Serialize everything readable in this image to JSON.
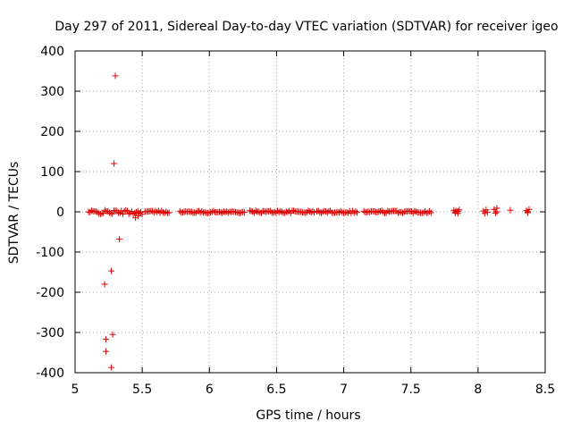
{
  "chart_data": {
    "type": "scatter",
    "title": "Day 297 of 2011, Sidereal Day-to-day VTEC variation (SDTVAR) for receiver igeo",
    "xlabel": "GPS time / hours",
    "ylabel": "SDTVAR / TECUs",
    "xlim": [
      5,
      8.5
    ],
    "ylim": [
      -400,
      400
    ],
    "xticks": [
      "5",
      "5.5",
      "6",
      "6.5",
      "7",
      "7.5",
      "8",
      "8.5"
    ],
    "yticks": [
      "400",
      "300",
      "200",
      "100",
      "0",
      "-100",
      "-200",
      "-300",
      "-400"
    ],
    "grid": true,
    "legend": "none",
    "marker": "+",
    "color": "#dd0000",
    "outliers": [
      {
        "x": 5.3,
        "y": 338
      },
      {
        "x": 5.29,
        "y": 120
      },
      {
        "x": 5.33,
        "y": -68
      },
      {
        "x": 5.27,
        "y": -147
      },
      {
        "x": 5.22,
        "y": -180
      },
      {
        "x": 5.28,
        "y": -305
      },
      {
        "x": 5.23,
        "y": -317
      },
      {
        "x": 5.23,
        "y": -347
      },
      {
        "x": 5.27,
        "y": -387
      },
      {
        "x": 5.45,
        "y": -15
      },
      {
        "x": 5.47,
        "y": -10
      }
    ],
    "near_zero_segments": [
      {
        "x_start": 5.1,
        "x_end": 5.5,
        "y_min": -6,
        "y_max": 4
      },
      {
        "x_start": 5.52,
        "x_end": 5.7,
        "y_min": -3,
        "y_max": 3
      },
      {
        "x_start": 5.78,
        "x_end": 6.26,
        "y_min": -3,
        "y_max": 2
      },
      {
        "x_start": 6.3,
        "x_end": 6.78,
        "y_min": -3,
        "y_max": 3
      },
      {
        "x_start": 6.8,
        "x_end": 7.1,
        "y_min": -3,
        "y_max": 3
      },
      {
        "x_start": 7.15,
        "x_end": 7.65,
        "y_min": -3,
        "y_max": 3
      }
    ],
    "sparse_points": [
      {
        "x": 7.82,
        "y": 4
      },
      {
        "x": 7.83,
        "y": -3
      },
      {
        "x": 7.84,
        "y": 2
      },
      {
        "x": 7.85,
        "y": -4
      },
      {
        "x": 7.86,
        "y": 5
      },
      {
        "x": 7.83,
        "y": 0
      },
      {
        "x": 7.85,
        "y": 1
      },
      {
        "x": 8.04,
        "y": 2
      },
      {
        "x": 8.05,
        "y": -4
      },
      {
        "x": 8.06,
        "y": 5
      },
      {
        "x": 8.07,
        "y": -1
      },
      {
        "x": 8.12,
        "y": 6
      },
      {
        "x": 8.13,
        "y": -3
      },
      {
        "x": 8.14,
        "y": 9
      },
      {
        "x": 8.14,
        "y": 0
      },
      {
        "x": 8.24,
        "y": 4
      },
      {
        "x": 8.36,
        "y": 3
      },
      {
        "x": 8.37,
        "y": -2
      },
      {
        "x": 8.38,
        "y": 6
      },
      {
        "x": 8.37,
        "y": 0
      }
    ]
  }
}
